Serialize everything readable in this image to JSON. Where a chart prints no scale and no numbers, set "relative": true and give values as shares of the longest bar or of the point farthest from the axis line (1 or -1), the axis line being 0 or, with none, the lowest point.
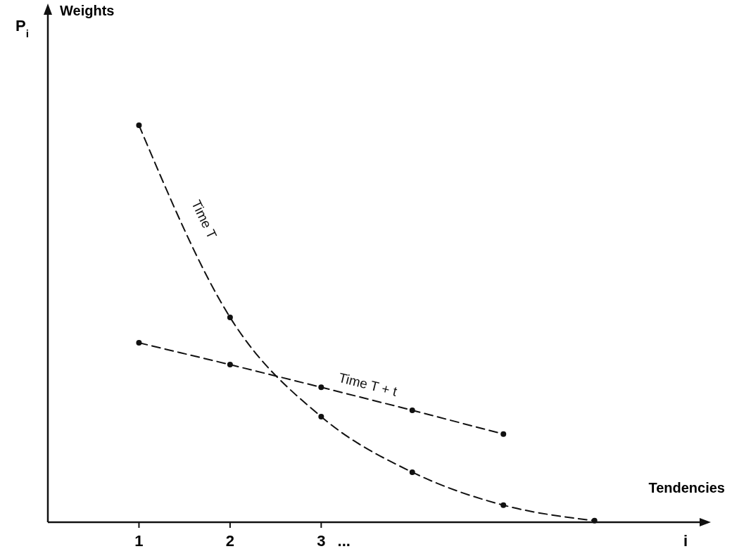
{
  "chart_data": {
    "type": "line",
    "relative": true,
    "annotations": [
      "P$_{i}$",
      "Weights",
      "Tendencies"
    ],
    "xlim": [
      0,
      7.2
    ],
    "xticks": [
      1,
      2,
      3,
      {
        "value": 3.25,
        "label": "..."
      },
      {
        "value": 7,
        "label": "i"
      }
    ],
    "marker": "circle",
    "line_style": "dashed",
    "series": [
      {
        "name": "Time T",
        "color": "#111111",
        "x": [
          1,
          2,
          3,
          4,
          5,
          6
        ],
        "values": [
          1,
          0.516,
          0.266,
          0.126,
          0.043,
          0.004
        ]
      },
      {
        "name": "Time T + t",
        "color": "#111111",
        "x": [
          1,
          2,
          3,
          4,
          5
        ],
        "values": [
          0.452,
          0.397,
          0.34,
          0.282,
          0.222
        ]
      }
    ]
  }
}
